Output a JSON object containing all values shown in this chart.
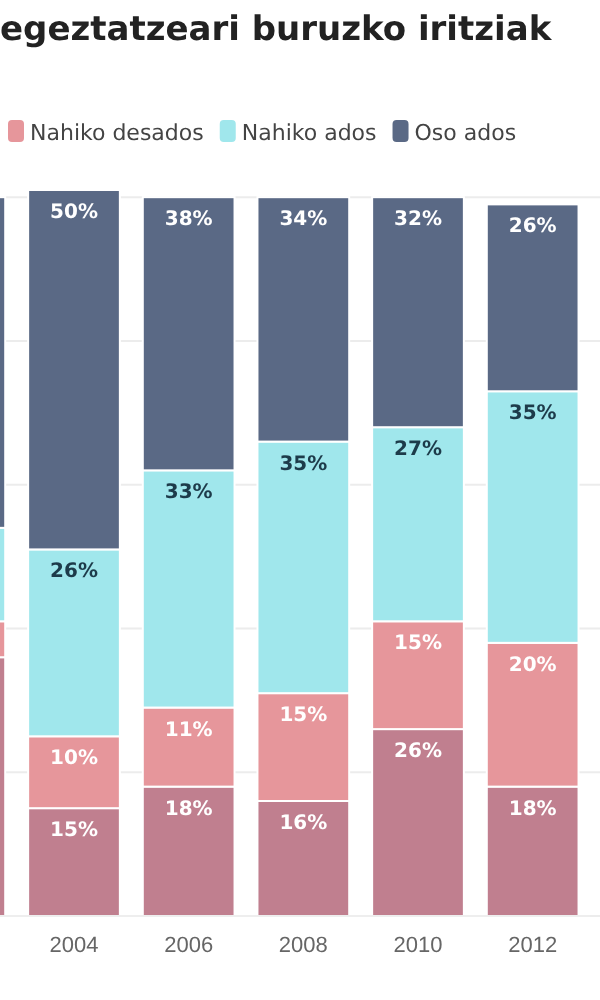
{
  "chart_data": {
    "type": "bar",
    "stacked": true,
    "title": "egeztatzeari buruzko iritziak",
    "categories": [
      null,
      "2004",
      "2006",
      "2008",
      "2010",
      "2012"
    ],
    "series": [
      {
        "color": "#c07f8f",
        "values": [
          36,
          15,
          18,
          16,
          26,
          18
        ],
        "value_labels": [
          null,
          "15%",
          "18%",
          "16%",
          "26%",
          "18%"
        ]
      },
      {
        "name": "Nahiko desados",
        "color": "#e6969b",
        "values": [
          5,
          10,
          11,
          15,
          15,
          20
        ],
        "value_labels": [
          null,
          "10%",
          "11%",
          "15%",
          "15%",
          "20%"
        ]
      },
      {
        "name": "Nahiko ados",
        "color": "#a0e7ec",
        "values": [
          13,
          26,
          33,
          35,
          27,
          35
        ],
        "value_labels": [
          null,
          "26%",
          "33%",
          "35%",
          "27%",
          "35%"
        ]
      },
      {
        "name": "Oso ados",
        "color": "#5a6985",
        "values": [
          46,
          50,
          38,
          34,
          32,
          26
        ],
        "value_labels": [
          null,
          "50%",
          "38%",
          "34%",
          "32%",
          "26%"
        ]
      }
    ],
    "ylim": [
      0,
      101
    ],
    "yticks": [
      {
        "value": 0,
        "label": null
      },
      {
        "value": 20,
        "label": null
      },
      {
        "value": 40,
        "label": null
      },
      {
        "value": 60,
        "label": null
      },
      {
        "value": 80,
        "label": null
      },
      {
        "value": 100,
        "label": null
      }
    ],
    "grid": "y",
    "legend": "top",
    "tick_labels": "x"
  }
}
